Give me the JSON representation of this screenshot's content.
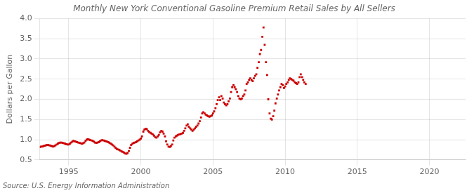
{
  "chart_data": {
    "type": "scatter",
    "title": "Monthly New York Conventional Gasoline Premium Retail Sales by All Sellers",
    "ylabel": "Dollars per Gallon",
    "annotations": [
      "Source: U.S. Energy Information Administration"
    ],
    "color": "#CC0000",
    "marker": "square",
    "grid": true,
    "xlim": [
      1993.0,
      2022.5
    ],
    "xticks": [
      1995,
      2000,
      2005,
      2010,
      2015,
      2020
    ],
    "ylim": [
      0.5,
      4.0
    ],
    "yticks": [
      0.5,
      {
        "value": 1.0,
        "label": "1.0"
      },
      1.5,
      {
        "value": 2.0,
        "label": "2.0"
      },
      2.5,
      {
        "value": 3.0,
        "label": "3.0"
      },
      3.5,
      {
        "value": 4.0,
        "label": "4.0"
      }
    ],
    "x": [
      1993.0,
      1993.08,
      1993.17,
      1993.25,
      1993.33,
      1993.42,
      1993.5,
      1993.58,
      1993.67,
      1993.75,
      1993.83,
      1993.92,
      1994.0,
      1994.08,
      1994.17,
      1994.25,
      1994.33,
      1994.42,
      1994.5,
      1994.58,
      1994.67,
      1994.75,
      1994.83,
      1994.92,
      1995.0,
      1995.08,
      1995.17,
      1995.25,
      1995.33,
      1995.42,
      1995.5,
      1995.58,
      1995.67,
      1995.75,
      1995.83,
      1995.92,
      1996.0,
      1996.08,
      1996.17,
      1996.25,
      1996.33,
      1996.42,
      1996.5,
      1996.58,
      1996.67,
      1996.75,
      1996.83,
      1996.92,
      1997.0,
      1997.08,
      1997.17,
      1997.25,
      1997.33,
      1997.42,
      1997.5,
      1997.58,
      1997.67,
      1997.75,
      1997.83,
      1997.92,
      1998.0,
      1998.08,
      1998.17,
      1998.25,
      1998.33,
      1998.42,
      1998.5,
      1998.58,
      1998.67,
      1998.75,
      1998.83,
      1998.92,
      1999.0,
      1999.08,
      1999.17,
      1999.25,
      1999.33,
      1999.42,
      1999.5,
      1999.58,
      1999.67,
      1999.75,
      1999.83,
      1999.92,
      2000.0,
      2000.08,
      2000.17,
      2000.25,
      2000.33,
      2000.42,
      2000.5,
      2000.58,
      2000.67,
      2000.75,
      2000.83,
      2000.92,
      2001.0,
      2001.08,
      2001.17,
      2001.25,
      2001.33,
      2001.42,
      2001.5,
      2001.58,
      2001.67,
      2001.75,
      2001.83,
      2001.92,
      2002.0,
      2002.08,
      2002.17,
      2002.25,
      2002.33,
      2002.42,
      2002.5,
      2002.58,
      2002.67,
      2002.75,
      2002.83,
      2002.92,
      2003.0,
      2003.08,
      2003.17,
      2003.25,
      2003.33,
      2003.42,
      2003.5,
      2003.58,
      2003.67,
      2003.75,
      2003.83,
      2003.92,
      2004.0,
      2004.08,
      2004.17,
      2004.25,
      2004.33,
      2004.42,
      2004.5,
      2004.58,
      2004.67,
      2004.75,
      2004.83,
      2004.92,
      2005.0,
      2005.08,
      2005.17,
      2005.25,
      2005.33,
      2005.42,
      2005.5,
      2005.58,
      2005.67,
      2005.75,
      2005.83,
      2005.92,
      2006.0,
      2006.08,
      2006.17,
      2006.25,
      2006.33,
      2006.42,
      2006.5,
      2006.58,
      2006.67,
      2006.75,
      2006.83,
      2006.92,
      2007.0,
      2007.08,
      2007.17,
      2007.25,
      2007.33,
      2007.42,
      2007.5,
      2007.58,
      2007.67,
      2007.75,
      2007.83,
      2007.92,
      2008.0,
      2008.08,
      2008.17,
      2008.25,
      2008.33,
      2008.42,
      2008.5,
      2008.58,
      2008.67,
      2008.75,
      2008.83,
      2008.92,
      2009.0,
      2009.08,
      2009.17,
      2009.25,
      2009.33,
      2009.42,
      2009.5,
      2009.58,
      2009.67,
      2009.75,
      2009.83,
      2009.92,
      2010.0,
      2010.08,
      2010.17,
      2010.25,
      2010.33,
      2010.42,
      2010.5,
      2010.58,
      2010.67,
      2010.75,
      2010.83,
      2010.92,
      2011.0,
      2011.08,
      2011.17,
      2011.25,
      2011.33,
      2011.42
    ],
    "values": [
      0.82,
      0.83,
      0.83,
      0.84,
      0.85,
      0.86,
      0.87,
      0.87,
      0.86,
      0.85,
      0.84,
      0.83,
      0.84,
      0.86,
      0.88,
      0.9,
      0.92,
      0.93,
      0.93,
      0.92,
      0.91,
      0.9,
      0.89,
      0.88,
      0.88,
      0.9,
      0.93,
      0.95,
      0.97,
      0.96,
      0.95,
      0.94,
      0.93,
      0.92,
      0.91,
      0.9,
      0.91,
      0.93,
      0.97,
      1.0,
      1.01,
      1.0,
      0.99,
      0.98,
      0.97,
      0.95,
      0.93,
      0.92,
      0.93,
      0.94,
      0.96,
      0.98,
      0.99,
      0.98,
      0.97,
      0.96,
      0.95,
      0.94,
      0.92,
      0.9,
      0.88,
      0.86,
      0.83,
      0.8,
      0.77,
      0.76,
      0.75,
      0.73,
      0.71,
      0.7,
      0.68,
      0.66,
      0.65,
      0.67,
      0.72,
      0.8,
      0.87,
      0.9,
      0.92,
      0.93,
      0.94,
      0.96,
      0.98,
      1.0,
      1.03,
      1.08,
      1.2,
      1.25,
      1.27,
      1.26,
      1.22,
      1.19,
      1.17,
      1.15,
      1.13,
      1.1,
      1.06,
      1.05,
      1.08,
      1.12,
      1.18,
      1.22,
      1.2,
      1.15,
      1.08,
      0.96,
      0.88,
      0.83,
      0.82,
      0.84,
      0.88,
      0.98,
      1.05,
      1.08,
      1.1,
      1.12,
      1.13,
      1.14,
      1.15,
      1.17,
      1.22,
      1.28,
      1.35,
      1.38,
      1.32,
      1.28,
      1.25,
      1.22,
      1.25,
      1.28,
      1.32,
      1.35,
      1.4,
      1.46,
      1.55,
      1.65,
      1.68,
      1.65,
      1.62,
      1.6,
      1.58,
      1.57,
      1.58,
      1.6,
      1.65,
      1.7,
      1.78,
      1.88,
      1.98,
      2.05,
      1.98,
      2.08,
      2.02,
      1.92,
      1.88,
      1.85,
      1.88,
      1.95,
      2.02,
      2.18,
      2.3,
      2.35,
      2.3,
      2.25,
      2.18,
      2.08,
      2.02,
      2.0,
      2.02,
      2.08,
      2.12,
      2.22,
      2.38,
      2.42,
      2.48,
      2.52,
      2.48,
      2.45,
      2.52,
      2.58,
      2.62,
      2.78,
      2.92,
      3.12,
      3.22,
      3.55,
      3.78,
      3.35,
      2.92,
      2.6,
      2.0,
      1.65,
      1.52,
      1.5,
      1.58,
      1.72,
      1.9,
      2.02,
      2.12,
      2.22,
      2.3,
      2.38,
      2.35,
      2.28,
      2.32,
      2.38,
      2.42,
      2.48,
      2.52,
      2.5,
      2.48,
      2.46,
      2.42,
      2.4,
      2.38,
      2.42,
      2.55,
      2.62,
      2.55,
      2.48,
      2.42,
      2.38
    ]
  }
}
